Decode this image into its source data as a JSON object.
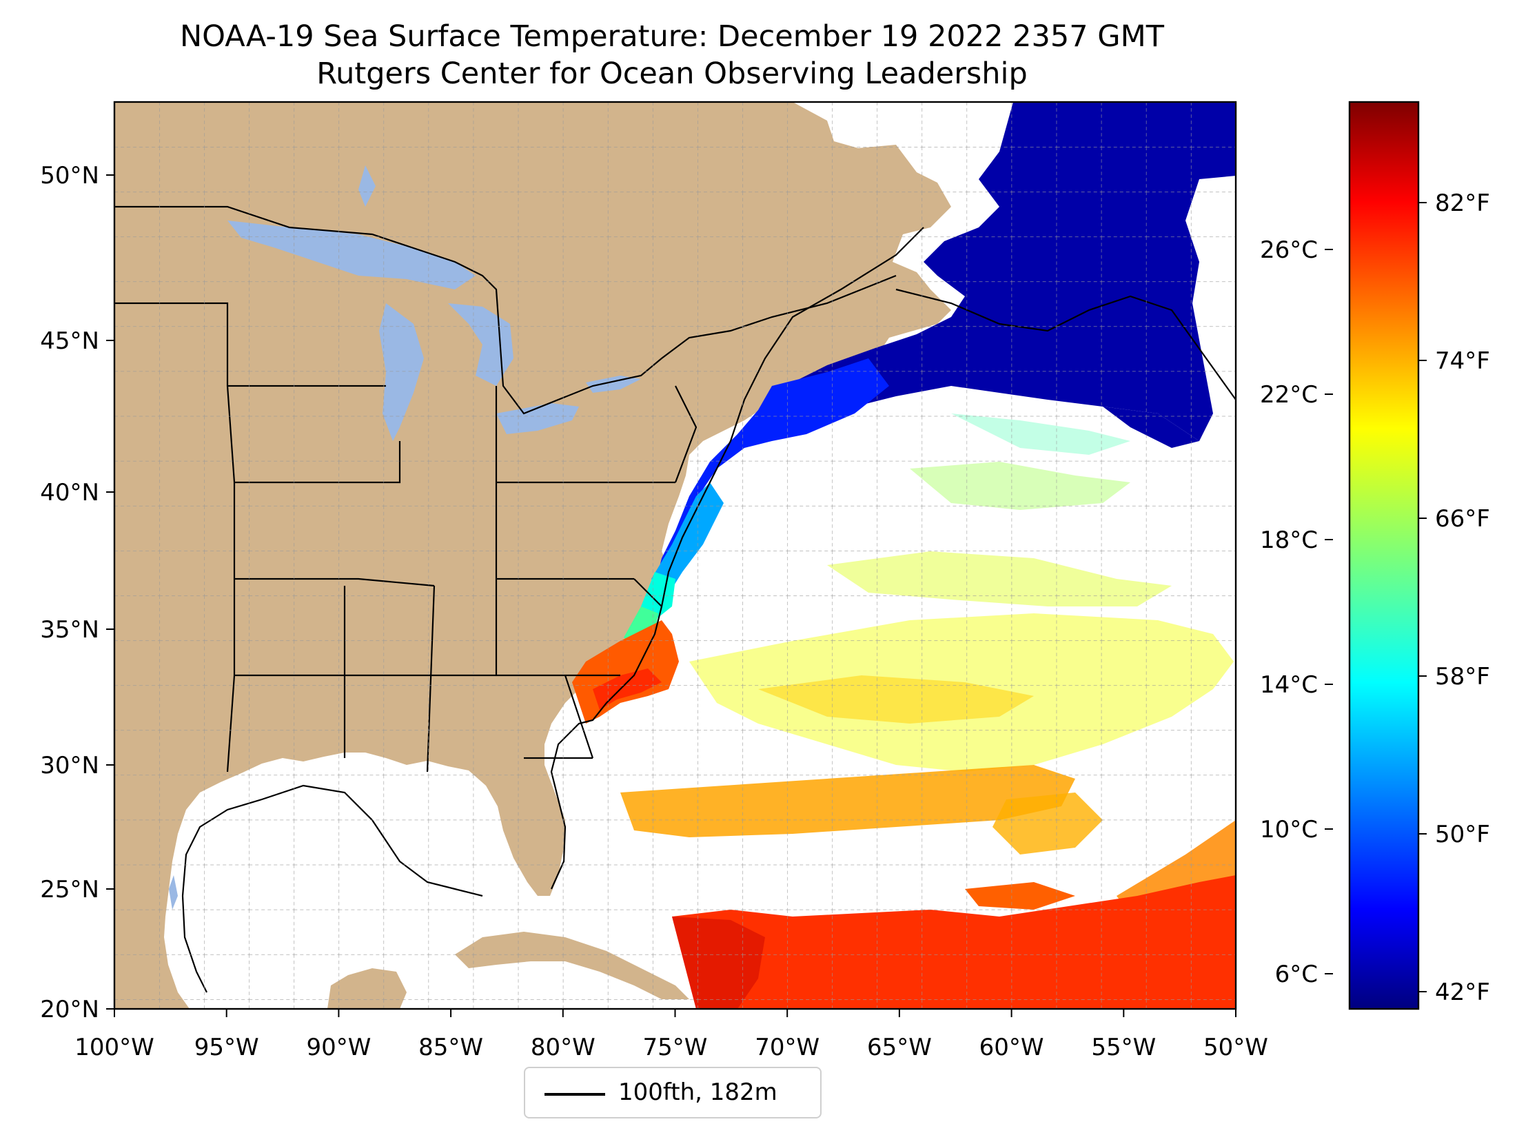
{
  "title": "NOAA-19 Sea Surface Temperature: December 19 2022 2357 GMT",
  "subtitle": "Rutgers Center for Ocean Observing Leadership",
  "colors": {
    "land": "#d2b48c",
    "lakes": "#9ab8e4",
    "ocean_no_data": "#ffffff",
    "isobath_line": "#000000"
  },
  "map": {
    "lon_range": [
      -100,
      -50
    ],
    "lat_range": [
      20,
      52.2
    ],
    "grid": true,
    "lon_ticks": [
      "100°W",
      "95°W",
      "90°W",
      "85°W",
      "80°W",
      "75°W",
      "70°W",
      "65°W",
      "60°W",
      "55°W",
      "50°W"
    ],
    "lat_ticks": [
      "20°N",
      "25°N",
      "30°N",
      "35°N",
      "40°N",
      "45°N",
      "50°N"
    ]
  },
  "legend": {
    "location": "bottom-center",
    "entries": [
      {
        "label": "100fth, 182m",
        "style": "black line"
      }
    ]
  },
  "colorbar": {
    "colormap": "jet",
    "range_f": [
      40.5,
      86.5
    ],
    "fahrenheit_ticks": [
      "42°F",
      "50°F",
      "58°F",
      "66°F",
      "74°F",
      "82°F"
    ],
    "celsius_ticks": [
      "6°C",
      "10°C",
      "14°C",
      "18°C",
      "22°C",
      "26°C"
    ]
  }
}
